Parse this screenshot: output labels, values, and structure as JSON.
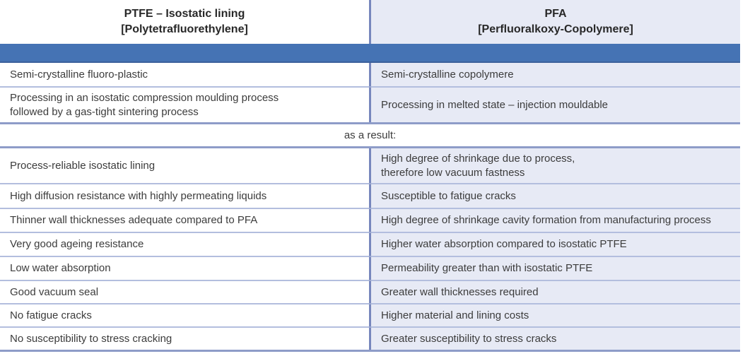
{
  "table": {
    "header": {
      "left": {
        "line1": "PTFE – Isostatic lining",
        "line2": "[Polytetrafluorethylene]"
      },
      "right": {
        "line1": "PFA",
        "line2": "[Perfluoralkoxy-Copolymere]"
      }
    },
    "section1": [
      {
        "left": "Semi-crystalline fluoro-plastic",
        "right": "Semi-crystalline copolymere"
      },
      {
        "left": "Processing in an isostatic compression moulding process\nfollowed by a gas-tight sintering process",
        "right": "Processing in melted state – injection mouldable"
      }
    ],
    "divider_label": "as a result:",
    "section2": [
      {
        "left": "Process-reliable isostatic lining",
        "right": "High degree of shrinkage due to process,\ntherefore low vacuum fastness"
      },
      {
        "left": "High diffusion resistance with highly permeating liquids",
        "right": "Susceptible to fatigue cracks"
      },
      {
        "left": "Thinner wall thicknesses adequate compared to PFA",
        "right": "High degree of shrinkage cavity formation from manufacturing process"
      },
      {
        "left": "Very good ageing resistance",
        "right": "Higher water absorption compared to isostatic PTFE"
      },
      {
        "left": "Low water absorption",
        "right": "Permeability greater than with isostatic PTFE"
      },
      {
        "left": "Good vacuum seal",
        "right": "Greater wall thicknesses required"
      },
      {
        "left": "No fatigue cracks",
        "right": "Higher material and lining costs"
      },
      {
        "left": "No susceptibility to stress cracking",
        "right": "Greater susceptibility to stress cracks"
      }
    ],
    "colors": {
      "band_blue": "#4573b4",
      "right_column_bg": "#e7eaf5",
      "column_divider": "#7787bd",
      "row_separator": "#b3bede",
      "section_border": "#8e9cc8",
      "text": "#3c3c3c"
    }
  }
}
